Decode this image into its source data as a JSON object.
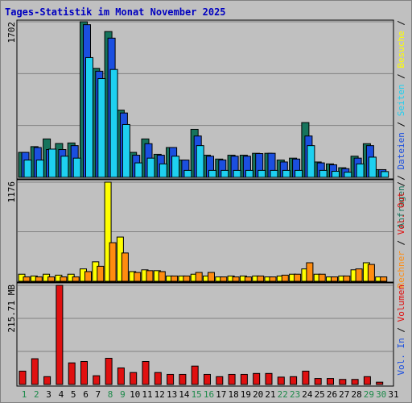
{
  "title": "Tages-Statistik im Monat November 2025",
  "colors": {
    "anfragen": "#16745c",
    "dateien": "#1b4fe0",
    "seiten": "#1ed0f0",
    "besuche": "#ffff00",
    "rechner": "#ff8c10",
    "volumen": "#e01010",
    "weekday_label": "#000000",
    "weekend_label": "#1d8a4a",
    "title": "#0000c0"
  },
  "chart_data": [
    {
      "type": "bar",
      "panel": "top",
      "y_max_label": "1702",
      "ylim": [
        0,
        1702
      ],
      "grid": true,
      "x": [
        1,
        2,
        3,
        4,
        5,
        6,
        7,
        8,
        9,
        10,
        11,
        12,
        13,
        14,
        15,
        16,
        17,
        18,
        19,
        20,
        21,
        22,
        23,
        24,
        25,
        26,
        27,
        28,
        29,
        30,
        31
      ],
      "series": [
        {
          "name": "Anfragen",
          "values": [
            273,
            336,
            420,
            370,
            376,
            1702,
            1192,
            1595,
            735,
            273,
            420,
            252,
            326,
            189,
            525,
            242,
            200,
            242,
            242,
            263,
            263,
            189,
            210,
            599,
            168,
            147,
            105,
            231,
            368,
            84,
            0
          ]
        },
        {
          "name": "Dateien",
          "values": [
            273,
            326,
            304,
            304,
            347,
            1670,
            1161,
            1523,
            704,
            242,
            368,
            242,
            326,
            189,
            452,
            231,
            190,
            231,
            231,
            260,
            263,
            168,
            200,
            452,
            158,
            137,
            95,
            210,
            347,
            84,
            0
          ]
        },
        {
          "name": "Seiten",
          "values": [
            189,
            189,
            309,
            231,
            210,
            1310,
            1080,
            1180,
            578,
            158,
            210,
            147,
            231,
            76,
            347,
            76,
            76,
            76,
            76,
            76,
            76,
            76,
            76,
            347,
            76,
            66,
            56,
            147,
            221,
            63,
            0
          ]
        }
      ]
    },
    {
      "type": "bar",
      "panel": "middle",
      "y_max_label": "1176",
      "ylim": [
        0,
        1176
      ],
      "grid": true,
      "x": [
        1,
        2,
        3,
        4,
        5,
        6,
        7,
        8,
        9,
        10,
        11,
        12,
        13,
        14,
        15,
        16,
        17,
        18,
        19,
        20,
        21,
        22,
        23,
        24,
        25,
        26,
        27,
        28,
        29,
        30,
        31
      ],
      "series": [
        {
          "name": "Besuche",
          "values": [
            84,
            63,
            84,
            73,
            84,
            147,
            231,
            1176,
            525,
            115,
            136,
            126,
            63,
            63,
            84,
            63,
            52,
            63,
            63,
            63,
            52,
            63,
            84,
            147,
            84,
            52,
            63,
            136,
            220,
            52,
            0
          ]
        },
        {
          "name": "Rechner",
          "values": [
            52,
            52,
            52,
            52,
            52,
            115,
            178,
            458,
            336,
            105,
            126,
            115,
            63,
            63,
            105,
            105,
            52,
            52,
            52,
            63,
            52,
            73,
            84,
            220,
            84,
            52,
            63,
            147,
            200,
            52,
            0
          ]
        }
      ]
    },
    {
      "type": "bar",
      "panel": "bottom",
      "y_max_label": "215.71 MB",
      "ylim": [
        0,
        215.71
      ],
      "grid": true,
      "x": [
        1,
        2,
        3,
        4,
        5,
        6,
        7,
        8,
        9,
        10,
        11,
        12,
        13,
        14,
        15,
        16,
        17,
        18,
        19,
        20,
        21,
        22,
        23,
        24,
        25,
        26,
        27,
        28,
        29,
        30,
        31
      ],
      "series": [
        {
          "name": "Volumen",
          "values": [
            29,
            56,
            17,
            215.71,
            47,
            50,
            19,
            57,
            36,
            26,
            50,
            26,
            22,
            22,
            40,
            22,
            17,
            22,
            22,
            24,
            24,
            16,
            17,
            29,
            13,
            13,
            11,
            11,
            17,
            5,
            0
          ]
        }
      ]
    }
  ],
  "x_axis": {
    "labels": [
      "1",
      "2",
      "3",
      "4",
      "5",
      "6",
      "7",
      "8",
      "9",
      "10",
      "11",
      "12",
      "13",
      "14",
      "15",
      "16",
      "17",
      "18",
      "19",
      "20",
      "21",
      "22",
      "23",
      "24",
      "25",
      "26",
      "27",
      "28",
      "29",
      "30",
      "31"
    ],
    "weekend": [
      1,
      2,
      8,
      9,
      15,
      16,
      22,
      23,
      29,
      30
    ]
  },
  "legend": {
    "top": [
      {
        "text": "Anfragen",
        "color_key": "anfragen"
      },
      {
        "text": "Dateien",
        "color_key": "dateien"
      },
      {
        "text": "Seiten",
        "color_key": "seiten"
      },
      {
        "text": "Besuche",
        "color_key": "besuche"
      }
    ],
    "middle": [
      {
        "text": "Rechner",
        "color_key": "rechner"
      },
      {
        "text": "Vol. Out",
        "color_key": "volumen"
      }
    ],
    "bottom": [
      {
        "text": "Vol. In",
        "color_key": "dateien"
      },
      {
        "text": "Volumen",
        "color_key": "volumen"
      }
    ],
    "separator": " / "
  }
}
